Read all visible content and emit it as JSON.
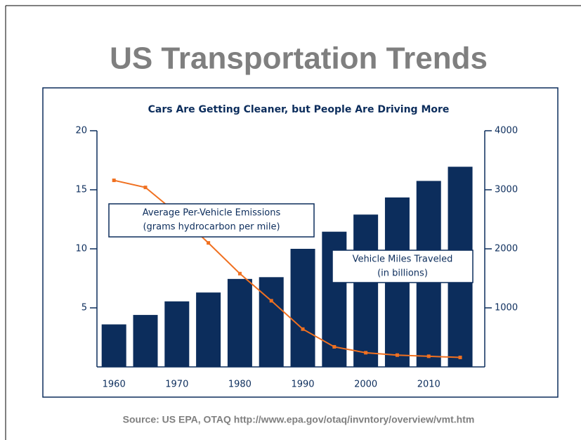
{
  "title": "US Transportation Trends",
  "source": "Source: US EPA, OTAQ http://www.epa.gov/otaq/invntory/overview/vmt.htm",
  "chart_data": {
    "type": "bar-line",
    "title": "Cars Are Getting Cleaner, but People Are Driving More",
    "x": [
      1960,
      1965,
      1970,
      1975,
      1980,
      1985,
      1990,
      1995,
      2000,
      2005,
      2010,
      2015
    ],
    "xlim": [
      1957.3,
      2018.9
    ],
    "xticks": [
      1960,
      1970,
      1980,
      1990,
      2000,
      2010
    ],
    "ylim": [
      0,
      20
    ],
    "yticks": [
      5,
      10,
      15,
      20
    ],
    "y2lim": [
      0,
      4000
    ],
    "y2ticks": [
      1000,
      2000,
      3000,
      4000
    ],
    "series": [
      {
        "type": "bar",
        "axis": "y2",
        "color": "#0c2d5c",
        "values": [
          720,
          880,
          1110,
          1260,
          1490,
          1520,
          2000,
          2290,
          2580,
          2870,
          3150,
          3390
        ]
      },
      {
        "type": "line",
        "axis": "y",
        "color": "#f07020",
        "values": [
          15.8,
          15.2,
          13.0,
          10.5,
          7.9,
          5.6,
          3.2,
          1.7,
          1.2,
          1.0,
          0.9,
          0.8
        ]
      }
    ],
    "annotations": [
      {
        "lines": [
          "Average Per-Vehicle Emissions",
          "(grams hydrocarbon per mile)"
        ]
      },
      {
        "lines": [
          "Vehicle Miles Traveled",
          "(in billions)"
        ]
      }
    ]
  }
}
